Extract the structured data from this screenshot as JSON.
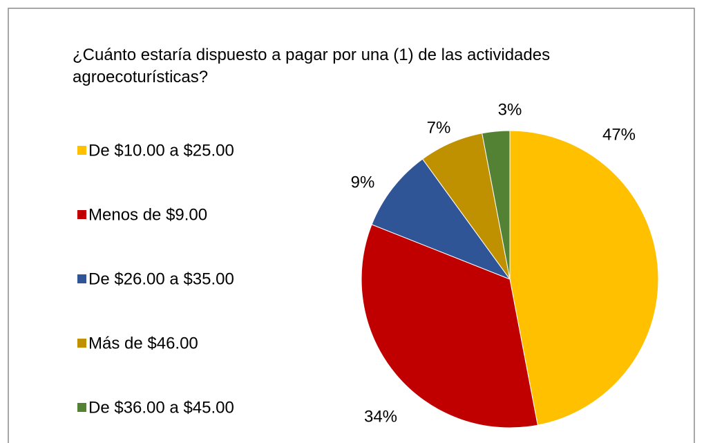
{
  "chart_data": {
    "type": "pie",
    "title": "¿Cuánto estaría dispuesto a pagar por una (1) de las actividades agroecoturísticas?",
    "categories": [
      "De $10.00 a $25.00",
      "Menos de $9.00",
      "De $26.00 a $35.00",
      "Más de $46.00",
      "De $36.00 a $45.00"
    ],
    "values": [
      47,
      34,
      9,
      7,
      3
    ],
    "value_labels": [
      "47%",
      "34%",
      "9%",
      "7%",
      "3%"
    ],
    "colors": [
      "#ffc000",
      "#c00000",
      "#2f5597",
      "#bf9000",
      "#548235"
    ],
    "legend": "left"
  }
}
